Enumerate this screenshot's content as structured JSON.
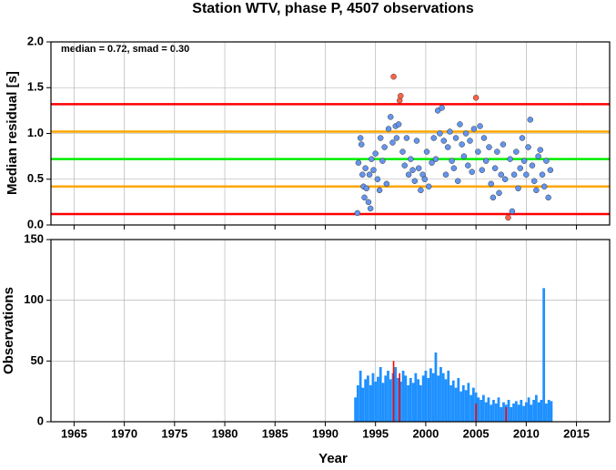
{
  "chart_data": [
    {
      "type": "scatter",
      "title": "Station WTV, phase P, 4507 observations",
      "ylabel": "Median residual [s]",
      "annotation": "median = 0.72, smad = 0.30",
      "xlim": [
        1962.7,
        2018.3
      ],
      "xticks": [
        1965,
        1970,
        1975,
        1980,
        1985,
        1990,
        1995,
        2000,
        2005,
        2010,
        2015
      ],
      "ylim": [
        0,
        2
      ],
      "yticks": [
        {
          "value": 0,
          "label": "0.0"
        },
        0.5,
        {
          "value": 1,
          "label": "1.0"
        },
        1.5,
        {
          "value": 2,
          "label": "2.0"
        }
      ],
      "grid": true,
      "color": "#6495ed",
      "outlier_color": "#ff6347",
      "hlines": [
        {
          "value": 1.32,
          "color": "#ff0000"
        },
        {
          "value": 1.02,
          "color": "#ffa500"
        },
        {
          "value": 0.72,
          "color": "#00ee00"
        },
        {
          "value": 0.42,
          "color": "#ffa500"
        },
        {
          "value": 0.12,
          "color": "#ff0000"
        }
      ],
      "x": [
        1993.2,
        1993.3,
        1993.5,
        1993.6,
        1993.7,
        1993.8,
        1993.9,
        1994.0,
        1994.1,
        1994.3,
        1994.4,
        1994.5,
        1994.6,
        1994.8,
        1995.0,
        1995.2,
        1995.4,
        1995.5,
        1995.7,
        1995.9,
        1996.1,
        1996.3,
        1996.5,
        1996.7,
        1996.8,
        1997.0,
        1997.1,
        1997.3,
        1997.4,
        1997.5,
        1997.7,
        1997.9,
        1998.1,
        1998.3,
        1998.5,
        1998.7,
        1998.9,
        1999.1,
        1999.3,
        1999.5,
        1999.7,
        1999.9,
        2000.1,
        2000.3,
        2000.6,
        2000.8,
        2001.0,
        2001.2,
        2001.4,
        2001.6,
        2001.8,
        2002.0,
        2002.2,
        2002.4,
        2002.6,
        2002.8,
        2003.0,
        2003.2,
        2003.4,
        2003.6,
        2003.8,
        2004.0,
        2004.2,
        2004.4,
        2004.6,
        2004.8,
        2005.0,
        2005.2,
        2005.4,
        2005.6,
        2005.8,
        2006.0,
        2006.3,
        2006.5,
        2006.7,
        2006.9,
        2007.1,
        2007.3,
        2007.5,
        2007.7,
        2007.9,
        2008.2,
        2008.4,
        2008.6,
        2008.8,
        2009.0,
        2009.2,
        2009.4,
        2009.6,
        2009.8,
        2010.0,
        2010.2,
        2010.4,
        2010.6,
        2010.8,
        2011.0,
        2011.2,
        2011.4,
        2011.6,
        2011.8,
        2012.0,
        2012.2,
        2012.4
      ],
      "values": [
        0.13,
        0.68,
        0.95,
        0.88,
        0.55,
        0.42,
        0.3,
        0.62,
        0.4,
        0.25,
        0.55,
        0.18,
        0.72,
        0.6,
        0.78,
        0.5,
        0.38,
        0.95,
        0.7,
        0.85,
        0.45,
        1.05,
        1.18,
        0.9,
        1.62,
        1.08,
        0.95,
        1.1,
        1.36,
        1.41,
        0.8,
        0.65,
        0.95,
        0.55,
        0.72,
        0.6,
        0.48,
        0.92,
        0.62,
        0.38,
        0.55,
        0.5,
        0.8,
        0.42,
        0.68,
        0.95,
        0.72,
        1.25,
        1.0,
        1.28,
        0.92,
        0.55,
        0.85,
        1.02,
        0.7,
        0.62,
        0.95,
        0.48,
        1.1,
        0.88,
        0.75,
        1.0,
        0.65,
        0.92,
        0.58,
        1.05,
        1.39,
        0.8,
        1.08,
        0.6,
        0.95,
        0.7,
        0.85,
        0.45,
        0.3,
        0.62,
        0.8,
        0.35,
        0.55,
        0.88,
        0.5,
        0.08,
        0.72,
        0.15,
        0.55,
        0.8,
        0.4,
        0.62,
        0.95,
        0.7,
        0.55,
        0.85,
        1.15,
        0.65,
        0.48,
        0.38,
        0.75,
        0.82,
        0.55,
        0.42,
        0.7,
        0.3,
        0.6
      ]
    },
    {
      "type": "bar",
      "xlabel": "Year",
      "ylabel": "Observations",
      "xlim": [
        1962.7,
        2018.3
      ],
      "xticks": [
        1965,
        1970,
        1975,
        1980,
        1985,
        1990,
        1995,
        2000,
        2005,
        2010,
        2015
      ],
      "ylim": [
        0,
        150
      ],
      "yticks": [
        0,
        50,
        100,
        150
      ],
      "grid": true,
      "series": [
        {
          "color": "#1e90ff",
          "x": [
            1993.0,
            1993.25,
            1993.5,
            1993.75,
            1994.0,
            1994.25,
            1994.5,
            1994.75,
            1995.0,
            1995.25,
            1995.5,
            1995.75,
            1996.0,
            1996.25,
            1996.5,
            1996.75,
            1997.0,
            1997.25,
            1997.5,
            1997.75,
            1998.0,
            1998.25,
            1998.5,
            1998.75,
            1999.0,
            1999.25,
            1999.5,
            1999.75,
            2000.0,
            2000.25,
            2000.5,
            2000.75,
            2001.0,
            2001.25,
            2001.5,
            2001.75,
            2002.0,
            2002.25,
            2002.5,
            2002.75,
            2003.0,
            2003.25,
            2003.5,
            2003.75,
            2004.0,
            2004.25,
            2004.5,
            2004.75,
            2005.0,
            2005.25,
            2005.5,
            2005.75,
            2006.0,
            2006.25,
            2006.5,
            2006.75,
            2007.0,
            2007.25,
            2007.5,
            2007.75,
            2008.0,
            2008.25,
            2008.5,
            2008.75,
            2009.0,
            2009.25,
            2009.5,
            2009.75,
            2010.0,
            2010.25,
            2010.5,
            2010.75,
            2011.0,
            2011.25,
            2011.5,
            2011.75,
            2012.0,
            2012.25,
            2012.5
          ],
          "values": [
            20,
            30,
            42,
            28,
            35,
            38,
            30,
            40,
            33,
            37,
            45,
            32,
            38,
            42,
            35,
            40,
            45,
            36,
            33,
            42,
            38,
            30,
            36,
            32,
            40,
            35,
            30,
            38,
            42,
            36,
            44,
            40,
            57,
            38,
            45,
            40,
            35,
            42,
            30,
            34,
            28,
            36,
            25,
            30,
            26,
            32,
            22,
            28,
            24,
            20,
            18,
            22,
            16,
            20,
            14,
            18,
            15,
            20,
            12,
            16,
            14,
            18,
            12,
            15,
            17,
            14,
            18,
            13,
            16,
            20,
            14,
            18,
            22,
            16,
            18,
            110,
            15,
            18,
            17
          ]
        },
        {
          "color": "#ff0000",
          "x": [
            1996.8,
            1997.4,
            2005.0,
            2008.0
          ],
          "values": [
            50,
            40,
            15,
            12
          ]
        }
      ]
    }
  ]
}
